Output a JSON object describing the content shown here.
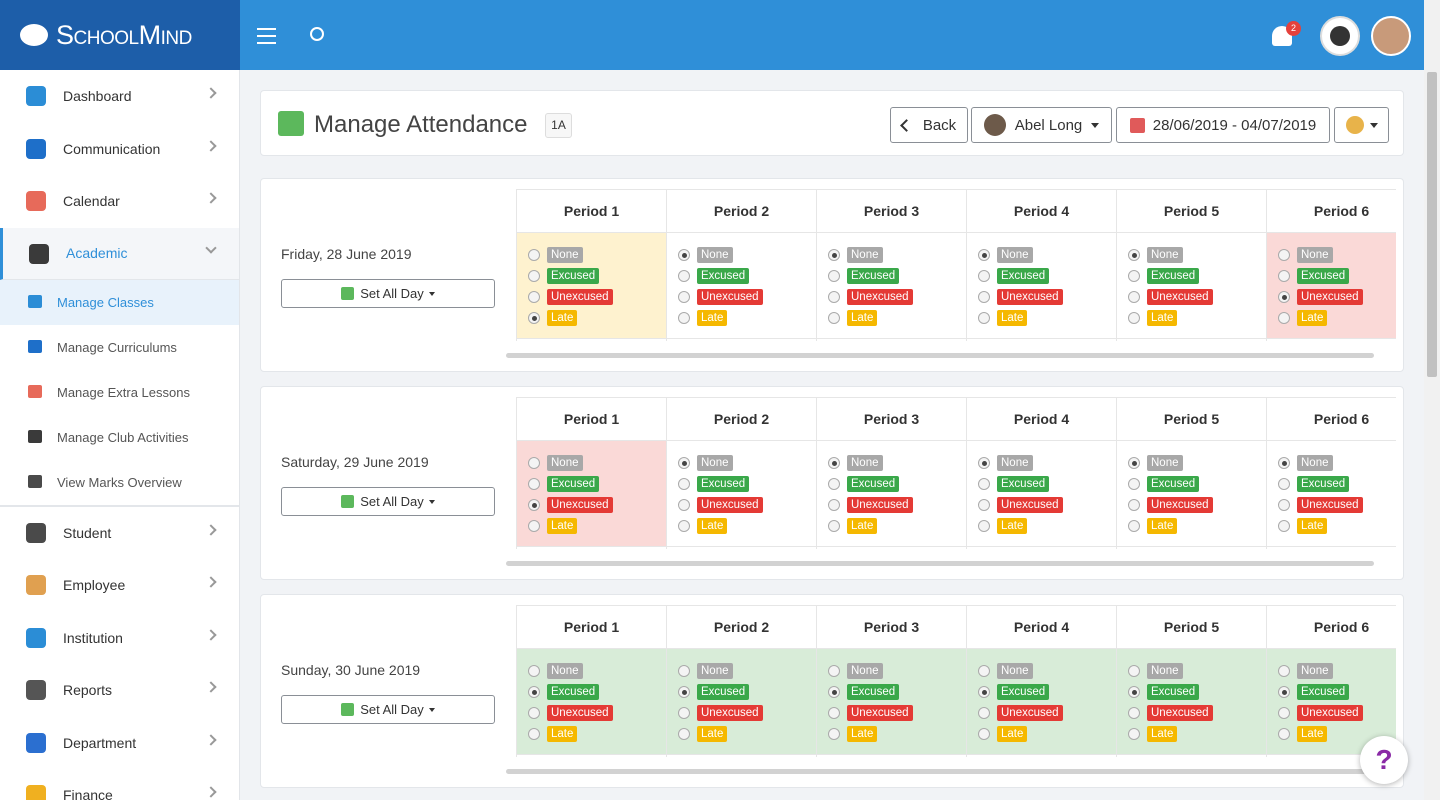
{
  "brand": "SchoolMind",
  "notifications": "2",
  "sidebar": {
    "items": [
      {
        "label": "Dashboard"
      },
      {
        "label": "Communication"
      },
      {
        "label": "Calendar"
      },
      {
        "label": "Academic",
        "expanded": true,
        "children": [
          "Manage Classes",
          "Manage Curriculums",
          "Manage Extra Lessons",
          "Manage Club Activities",
          "View Marks Overview"
        ],
        "active_child": 0
      },
      {
        "label": "Student"
      },
      {
        "label": "Employee"
      },
      {
        "label": "Institution"
      },
      {
        "label": "Reports"
      },
      {
        "label": "Department"
      },
      {
        "label": "Finance"
      }
    ]
  },
  "header": {
    "title": "Manage Attendance",
    "badge": "1A",
    "back": "Back",
    "user": "Abel Long",
    "date_range": "28/06/2019 - 04/07/2019"
  },
  "set_all_label": "Set All Day",
  "periods": [
    "Period 1",
    "Period 2",
    "Period 3",
    "Period 4",
    "Period 5",
    "Period 6"
  ],
  "options": [
    {
      "label": "None",
      "color": "#a8a8a8",
      "tint": "#ffffff"
    },
    {
      "label": "Excused",
      "color": "#3aa84a",
      "tint": "#d8ecd8"
    },
    {
      "label": "Unexcused",
      "color": "#e43a35",
      "tint": "#fad9d7"
    },
    {
      "label": "Late",
      "color": "#f5b800",
      "tint": "#fef2cf"
    }
  ],
  "days": [
    {
      "date": "Friday, 28 June 2019",
      "selected": [
        "Late",
        "None",
        "None",
        "None",
        "None",
        "Unexcused"
      ]
    },
    {
      "date": "Saturday, 29 June 2019",
      "selected": [
        "Unexcused",
        "None",
        "None",
        "None",
        "None",
        "None"
      ]
    },
    {
      "date": "Sunday, 30 June 2019",
      "selected": [
        "Excused",
        "Excused",
        "Excused",
        "Excused",
        "Excused",
        "Excused"
      ]
    }
  ],
  "help": "?"
}
